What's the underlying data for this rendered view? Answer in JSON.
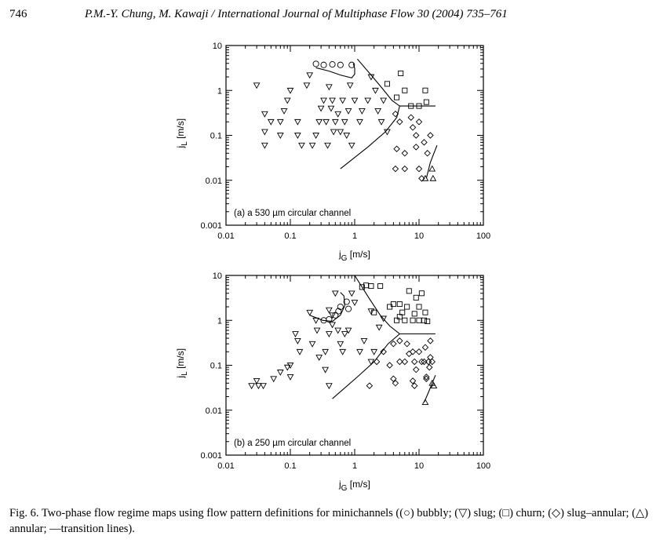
{
  "header": {
    "page_number": "746",
    "journal": "P.M.-Y. Chung, M. Kawaji / International Journal of Multiphase Flow 30 (2004) 735–761"
  },
  "caption": "Fig. 6. Two-phase flow regime maps using flow pattern definitions for minichannels ((○) bubbly; (▽) slug; (□) churn; (◇) slug–annular; (△) annular; —transition lines).",
  "chart_data": [
    {
      "type": "scatter",
      "log_x": true,
      "log_y": true,
      "xlim": [
        0.01,
        100
      ],
      "ylim": [
        0.001,
        10
      ],
      "x_ticks": [
        "0.01",
        "0.1",
        "1",
        "10",
        "100"
      ],
      "y_ticks": [
        "0.001",
        "0.01",
        "0.1",
        "1",
        "10"
      ],
      "xlabel_main": "j",
      "xlabel_sub": "G",
      "xlabel_unit": " [m/s]",
      "ylabel_main": "j",
      "ylabel_sub": "L",
      "ylabel_unit": " [m/s]",
      "panel_label": "(a) a 530 µm circular channel",
      "series": [
        {
          "marker": "circle",
          "points": [
            [
              0.25,
              3.9
            ],
            [
              0.33,
              3.7
            ],
            [
              0.45,
              3.8
            ],
            [
              0.6,
              3.7
            ],
            [
              0.9,
              3.7
            ]
          ]
        },
        {
          "marker": "triangle-down",
          "points": [
            [
              0.03,
              1.3
            ],
            [
              0.04,
              0.3
            ],
            [
              0.04,
              0.12
            ],
            [
              0.04,
              0.06
            ],
            [
              0.05,
              0.2
            ],
            [
              0.07,
              0.1
            ],
            [
              0.07,
              0.2
            ],
            [
              0.08,
              0.35
            ],
            [
              0.09,
              0.6
            ],
            [
              0.1,
              1.0
            ],
            [
              0.13,
              0.2
            ],
            [
              0.13,
              0.1
            ],
            [
              0.15,
              0.06
            ],
            [
              0.18,
              1.3
            ],
            [
              0.2,
              2.2
            ],
            [
              0.22,
              0.06
            ],
            [
              0.25,
              0.1
            ],
            [
              0.28,
              0.2
            ],
            [
              0.3,
              0.4
            ],
            [
              0.33,
              0.6
            ],
            [
              0.36,
              0.2
            ],
            [
              0.38,
              0.06
            ],
            [
              0.4,
              1.2
            ],
            [
              0.43,
              0.4
            ],
            [
              0.45,
              0.6
            ],
            [
              0.47,
              0.12
            ],
            [
              0.5,
              0.2
            ],
            [
              0.55,
              0.3
            ],
            [
              0.6,
              0.12
            ],
            [
              0.65,
              0.6
            ],
            [
              0.7,
              0.2
            ],
            [
              0.75,
              0.1
            ],
            [
              0.8,
              0.35
            ],
            [
              0.85,
              1.3
            ],
            [
              0.9,
              0.06
            ],
            [
              1.0,
              0.6
            ],
            [
              1.2,
              0.2
            ],
            [
              1.3,
              0.35
            ],
            [
              1.6,
              0.6
            ],
            [
              1.8,
              2.0
            ],
            [
              2.1,
              1.0
            ],
            [
              2.3,
              0.35
            ],
            [
              2.6,
              0.2
            ],
            [
              2.8,
              0.6
            ],
            [
              3.2,
              0.12
            ]
          ]
        },
        {
          "marker": "square",
          "points": [
            [
              3.2,
              1.4
            ],
            [
              4.5,
              0.7
            ],
            [
              5.2,
              2.4
            ],
            [
              6.0,
              1.0
            ],
            [
              7.5,
              0.45
            ],
            [
              10.0,
              0.45
            ],
            [
              12.5,
              1.0
            ],
            [
              13.0,
              0.55
            ]
          ]
        },
        {
          "marker": "diamond",
          "points": [
            [
              4.3,
              0.3
            ],
            [
              5.0,
              0.2
            ],
            [
              7.5,
              0.25
            ],
            [
              8.0,
              0.15
            ],
            [
              9.0,
              0.1
            ],
            [
              10.0,
              0.2
            ],
            [
              4.5,
              0.05
            ],
            [
              6.0,
              0.04
            ],
            [
              9.0,
              0.055
            ],
            [
              12.0,
              0.07
            ],
            [
              15.0,
              0.1
            ],
            [
              4.3,
              0.018
            ],
            [
              6.0,
              0.018
            ],
            [
              10.0,
              0.018
            ],
            [
              13.5,
              0.04
            ],
            [
              11.0,
              0.011
            ]
          ]
        },
        {
          "marker": "triangle-up",
          "points": [
            [
              16.0,
              0.018
            ],
            [
              16.5,
              0.011
            ],
            [
              12.5,
              0.011
            ]
          ]
        }
      ],
      "lines": [
        [
          [
            0.25,
            3.2
          ],
          [
            0.4,
            2.7
          ],
          [
            0.6,
            2.2
          ],
          [
            0.9,
            1.9
          ],
          [
            1.0,
            2.3
          ],
          [
            1.0,
            3.1
          ],
          [
            0.95,
            4.0
          ]
        ],
        [
          [
            1.1,
            5.0
          ],
          [
            1.8,
            2.2
          ],
          [
            2.7,
            1.1
          ],
          [
            3.8,
            0.6
          ],
          [
            5.0,
            0.45
          ]
        ],
        [
          [
            5.0,
            0.45
          ],
          [
            18.0,
            0.45
          ]
        ],
        [
          [
            0.6,
            0.018
          ],
          [
            1.6,
            0.055
          ],
          [
            3.0,
            0.12
          ],
          [
            4.5,
            0.25
          ],
          [
            5.0,
            0.45
          ]
        ],
        [
          [
            13.0,
            0.011
          ],
          [
            15.0,
            0.025
          ],
          [
            19.0,
            0.06
          ]
        ]
      ]
    },
    {
      "type": "scatter",
      "log_x": true,
      "log_y": true,
      "xlim": [
        0.01,
        100
      ],
      "ylim": [
        0.001,
        10
      ],
      "x_ticks": [
        "0.01",
        "0.1",
        "1",
        "10",
        "100"
      ],
      "y_ticks": [
        "0.001",
        "0.01",
        "0.1",
        "1",
        "10"
      ],
      "xlabel_main": "j",
      "xlabel_sub": "G",
      "xlabel_unit": " [m/s]",
      "ylabel_main": "j",
      "ylabel_sub": "L",
      "ylabel_unit": " [m/s]",
      "panel_label": "(b) a 250 µm circular channel",
      "series": [
        {
          "marker": "circle",
          "points": [
            [
              0.33,
              1.0
            ],
            [
              0.4,
              1.05
            ],
            [
              0.5,
              1.3
            ],
            [
              0.56,
              1.6
            ],
            [
              0.6,
              2.0
            ],
            [
              0.8,
              1.8
            ],
            [
              0.75,
              2.6
            ]
          ]
        },
        {
          "marker": "triangle-down",
          "points": [
            [
              0.025,
              0.035
            ],
            [
              0.032,
              0.035
            ],
            [
              0.038,
              0.035
            ],
            [
              0.03,
              0.045
            ],
            [
              0.055,
              0.05
            ],
            [
              0.07,
              0.07
            ],
            [
              0.09,
              0.09
            ],
            [
              0.1,
              0.1
            ],
            [
              0.1,
              0.055
            ],
            [
              0.12,
              0.5
            ],
            [
              0.13,
              0.35
            ],
            [
              0.14,
              0.2
            ],
            [
              0.2,
              1.5
            ],
            [
              0.25,
              1.0
            ],
            [
              0.26,
              0.6
            ],
            [
              0.22,
              0.3
            ],
            [
              0.28,
              0.15
            ],
            [
              0.35,
              0.2
            ],
            [
              0.35,
              0.08
            ],
            [
              0.4,
              0.5
            ],
            [
              0.4,
              1.7
            ],
            [
              0.45,
              0.8
            ],
            [
              0.45,
              1.3
            ],
            [
              0.5,
              4.0
            ],
            [
              0.55,
              0.6
            ],
            [
              0.6,
              0.3
            ],
            [
              0.65,
              0.2
            ],
            [
              0.7,
              0.5
            ],
            [
              0.8,
              0.6
            ],
            [
              0.4,
              0.035
            ],
            [
              0.9,
              4.0
            ],
            [
              1.0,
              2.5
            ],
            [
              1.2,
              0.2
            ],
            [
              1.4,
              0.35
            ],
            [
              1.8,
              0.12
            ],
            [
              1.8,
              1.6
            ],
            [
              2.0,
              0.2
            ],
            [
              2.4,
              0.7
            ],
            [
              2.8,
              1.1
            ]
          ]
        },
        {
          "marker": "square",
          "points": [
            [
              1.3,
              5.5
            ],
            [
              1.5,
              6.0
            ],
            [
              1.8,
              5.8
            ],
            [
              2.0,
              1.5
            ],
            [
              2.5,
              5.8
            ],
            [
              3.5,
              2.0
            ],
            [
              4.0,
              2.3
            ],
            [
              4.5,
              1.0
            ],
            [
              5.0,
              1.2
            ],
            [
              5.5,
              1.5
            ],
            [
              5.0,
              2.3
            ],
            [
              6.0,
              1.0
            ],
            [
              6.5,
              2.0
            ],
            [
              7.0,
              4.5
            ],
            [
              8.0,
              1.0
            ],
            [
              8.5,
              1.4
            ],
            [
              10.0,
              2.0
            ],
            [
              10.0,
              1.0
            ],
            [
              11.0,
              4.0
            ],
            [
              12.0,
              1.0
            ],
            [
              12.5,
              1.5
            ],
            [
              13.5,
              0.95
            ],
            [
              9.0,
              3.2
            ]
          ]
        },
        {
          "marker": "diamond",
          "points": [
            [
              1.7,
              0.035
            ],
            [
              2.2,
              0.12
            ],
            [
              2.8,
              0.2
            ],
            [
              3.5,
              0.1
            ],
            [
              4.0,
              0.3
            ],
            [
              5.0,
              0.35
            ],
            [
              5.0,
              0.12
            ],
            [
              6.0,
              0.12
            ],
            [
              6.5,
              0.3
            ],
            [
              7.0,
              0.18
            ],
            [
              8.0,
              0.2
            ],
            [
              8.5,
              0.12
            ],
            [
              9.0,
              0.08
            ],
            [
              10.0,
              0.2
            ],
            [
              11.0,
              0.12
            ],
            [
              12.0,
              0.12
            ],
            [
              12.5,
              0.25
            ],
            [
              14.0,
              0.12
            ],
            [
              14.5,
              0.09
            ],
            [
              15.0,
              0.15
            ],
            [
              15.0,
              0.35
            ],
            [
              16.0,
              0.12
            ],
            [
              4.0,
              0.05
            ],
            [
              4.3,
              0.04
            ],
            [
              8.0,
              0.045
            ],
            [
              8.5,
              0.035
            ],
            [
              13.0,
              0.05
            ],
            [
              13.0,
              0.055
            ]
          ]
        },
        {
          "marker": "triangle-up",
          "points": [
            [
              12.5,
              0.015
            ],
            [
              16.0,
              0.04
            ],
            [
              17.0,
              0.035
            ]
          ]
        }
      ],
      "lines": [
        [
          [
            0.2,
            1.3
          ],
          [
            0.32,
            1.0
          ],
          [
            0.45,
            0.95
          ],
          [
            0.6,
            1.3
          ],
          [
            0.7,
            2.1
          ],
          [
            0.68,
            3.5
          ],
          [
            0.6,
            4.2
          ]
        ],
        [
          [
            1.0,
            10.0
          ],
          [
            1.7,
            3.0
          ],
          [
            2.5,
            1.3
          ],
          [
            3.5,
            0.75
          ],
          [
            5.0,
            0.5
          ]
        ],
        [
          [
            5.0,
            0.5
          ],
          [
            18.0,
            0.5
          ]
        ],
        [
          [
            0.45,
            0.018
          ],
          [
            1.1,
            0.055
          ],
          [
            2.0,
            0.12
          ],
          [
            3.3,
            0.3
          ],
          [
            5.0,
            0.5
          ]
        ],
        [
          [
            12.0,
            0.015
          ],
          [
            14.0,
            0.025
          ],
          [
            18.0,
            0.06
          ]
        ]
      ]
    }
  ]
}
